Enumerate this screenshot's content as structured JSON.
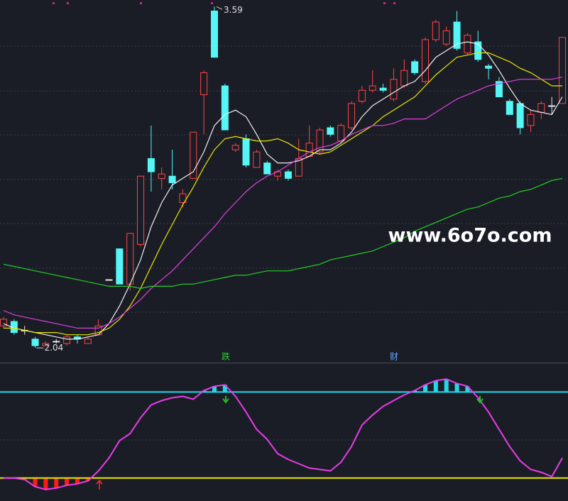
{
  "chart_data": [
    {
      "type": "candlestick",
      "open": [
        2.14,
        2.16,
        2.12,
        2.08,
        2.05,
        2.07,
        2.06,
        2.09,
        2.06,
        2.1,
        2.35,
        2.49,
        2.33,
        2.51,
        2.9,
        2.81,
        2.82,
        2.7,
        2.81,
        3.19,
        3.57,
        3.23,
        2.94,
        2.99,
        2.86,
        2.88,
        2.82,
        2.84,
        2.82,
        2.91,
        2.93,
        3.04,
        2.98,
        3.04,
        3.16,
        3.21,
        3.22,
        3.17,
        3.23,
        3.34,
        3.25,
        3.44,
        3.42,
        3.52,
        3.38,
        3.43,
        3.32,
        3.25,
        3.16,
        3.15,
        3.05,
        3.11,
        3.14,
        3.15
      ],
      "high": [
        2.18,
        2.17,
        2.14,
        2.09,
        2.07,
        2.08,
        2.1,
        2.1,
        2.09,
        2.17,
        2.35,
        2.49,
        2.56,
        2.82,
        3.05,
        2.86,
        2.94,
        2.76,
        3.02,
        3.3,
        3.59,
        3.24,
        2.97,
        3.01,
        2.94,
        2.89,
        2.85,
        2.85,
        2.99,
        3.05,
        3.04,
        3.05,
        3.06,
        3.16,
        3.23,
        3.3,
        3.24,
        3.31,
        3.35,
        3.35,
        3.45,
        3.53,
        3.5,
        3.57,
        3.47,
        3.48,
        3.33,
        3.27,
        3.17,
        3.16,
        3.12,
        3.16,
        3.18,
        3.45
      ],
      "low": [
        2.13,
        2.1,
        2.1,
        2.04,
        2.05,
        2.06,
        2.05,
        2.06,
        2.06,
        2.1,
        2.35,
        2.33,
        2.3,
        2.5,
        2.75,
        2.76,
        2.76,
        2.68,
        2.81,
        3.01,
        3.36,
        3.03,
        2.93,
        2.86,
        2.86,
        2.83,
        2.8,
        2.8,
        2.82,
        2.91,
        2.92,
        3.0,
        2.97,
        3.03,
        3.15,
        3.2,
        3.2,
        3.16,
        3.22,
        3.28,
        3.24,
        3.43,
        3.41,
        3.39,
        3.37,
        3.34,
        3.26,
        3.18,
        3.1,
        3.01,
        3.02,
        3.08,
        3.1,
        3.15
      ],
      "close": [
        2.17,
        2.11,
        2.12,
        2.05,
        2.06,
        2.07,
        2.09,
        2.08,
        2.08,
        2.14,
        2.35,
        2.33,
        2.56,
        2.82,
        2.84,
        2.83,
        2.79,
        2.74,
        3.02,
        3.29,
        3.36,
        3.03,
        2.96,
        2.87,
        2.93,
        2.83,
        2.84,
        2.81,
        2.9,
        2.97,
        3.03,
        3.01,
        3.05,
        3.15,
        3.21,
        3.23,
        3.21,
        3.26,
        3.3,
        3.29,
        3.44,
        3.52,
        3.48,
        3.4,
        3.46,
        3.35,
        3.31,
        3.18,
        3.1,
        3.04,
        3.1,
        3.15,
        3.14,
        3.45
      ],
      "up_color": "#ff4444",
      "down_color": "#54f6f6",
      "flat_color": "#e8e8e8",
      "series": [
        {
          "color": "#f0f0f0",
          "values": [
            2.15,
            2.13,
            2.12,
            2.11,
            2.1,
            2.09,
            2.08,
            2.08,
            2.09,
            2.1,
            2.15,
            2.23,
            2.33,
            2.44,
            2.59,
            2.7,
            2.78,
            2.81,
            2.84,
            2.93,
            3.05,
            3.1,
            3.12,
            3.09,
            3.01,
            2.92,
            2.88,
            2.88,
            2.89,
            2.91,
            2.94,
            2.94,
            2.97,
            3.02,
            3.09,
            3.14,
            3.17,
            3.2,
            3.23,
            3.25,
            3.3,
            3.36,
            3.39,
            3.42,
            3.43,
            3.42,
            3.37,
            3.3,
            3.22,
            3.15,
            3.12,
            3.11,
            3.1,
            3.18
          ]
        },
        {
          "color": "#e8e800",
          "values": [
            2.13,
            2.13,
            2.12,
            2.11,
            2.11,
            2.11,
            2.1,
            2.1,
            2.1,
            2.11,
            2.13,
            2.17,
            2.23,
            2.31,
            2.41,
            2.51,
            2.6,
            2.69,
            2.77,
            2.86,
            2.94,
            2.99,
            3.0,
            2.99,
            2.98,
            2.98,
            2.99,
            2.97,
            2.94,
            2.93,
            2.92,
            2.93,
            2.96,
            2.99,
            3.02,
            3.05,
            3.09,
            3.12,
            3.15,
            3.18,
            3.23,
            3.28,
            3.32,
            3.36,
            3.37,
            3.38,
            3.38,
            3.36,
            3.34,
            3.31,
            3.29,
            3.26,
            3.23,
            3.23
          ]
        },
        {
          "color": "#e040e0",
          "values": [
            2.21,
            2.19,
            2.18,
            2.17,
            2.16,
            2.15,
            2.14,
            2.13,
            2.13,
            2.13,
            2.15,
            2.18,
            2.22,
            2.26,
            2.31,
            2.35,
            2.39,
            2.44,
            2.49,
            2.54,
            2.59,
            2.65,
            2.7,
            2.75,
            2.79,
            2.82,
            2.84,
            2.87,
            2.9,
            2.93,
            2.95,
            2.96,
            2.98,
            3.01,
            3.03,
            3.05,
            3.05,
            3.06,
            3.08,
            3.08,
            3.08,
            3.11,
            3.14,
            3.17,
            3.19,
            3.21,
            3.23,
            3.24,
            3.25,
            3.26,
            3.26,
            3.26,
            3.26,
            3.27
          ]
        },
        {
          "color": "#22d022",
          "values": [
            2.42,
            2.41,
            2.4,
            2.39,
            2.38,
            2.37,
            2.36,
            2.35,
            2.34,
            2.33,
            2.32,
            2.32,
            2.32,
            2.31,
            2.32,
            2.32,
            2.32,
            2.33,
            2.33,
            2.34,
            2.35,
            2.36,
            2.37,
            2.37,
            2.38,
            2.39,
            2.39,
            2.39,
            2.4,
            2.41,
            2.42,
            2.44,
            2.45,
            2.46,
            2.47,
            2.48,
            2.5,
            2.52,
            2.54,
            2.57,
            2.59,
            2.61,
            2.63,
            2.65,
            2.67,
            2.68,
            2.7,
            2.72,
            2.73,
            2.75,
            2.76,
            2.78,
            2.8,
            2.81
          ]
        }
      ],
      "max_label": 3.59,
      "min_label": 2.04,
      "ylim": [
        1.97,
        3.62
      ]
    },
    {
      "type": "oscillator",
      "signals": [
        "跌",
        "财"
      ],
      "values": [
        20,
        20,
        19,
        14,
        12,
        13,
        15,
        16,
        18,
        25,
        34,
        46,
        51,
        62,
        71,
        74,
        76,
        77,
        75,
        81,
        84,
        85,
        77,
        66,
        54,
        47,
        37,
        33,
        30,
        27,
        26,
        25,
        31,
        42,
        57,
        64,
        70,
        74,
        78,
        81,
        85,
        88,
        89,
        86,
        84,
        76,
        66,
        54,
        42,
        32,
        26,
        24,
        21,
        34
      ],
      "color": "#e83ce8",
      "levels": [
        {
          "value": 80,
          "color": "#22d8e8"
        },
        {
          "value": 20,
          "color": "#e8e800"
        }
      ],
      "above_color": "#22d8e8",
      "below_color": "#ff1a1a",
      "ylim": [
        4,
        100
      ]
    }
  ],
  "watermark": "www.6o7o.com"
}
